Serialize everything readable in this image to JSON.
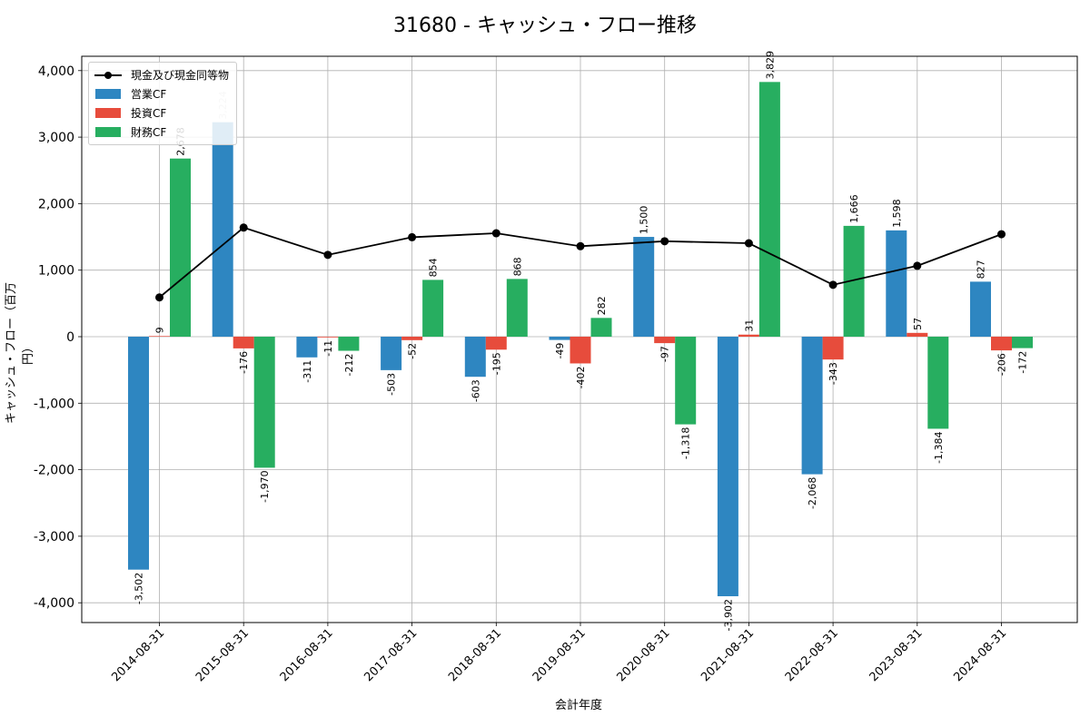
{
  "chart_data": {
    "type": "bar",
    "title": "31680 - キャッシュ・フロー推移",
    "xlabel": "会計年度",
    "ylabel": "キャッシュ・フロー（百万円）",
    "ylim": [
      -4300,
      4250
    ],
    "yticks": [
      -4000,
      -3000,
      -2000,
      -1000,
      0,
      1000,
      2000,
      3000,
      4000
    ],
    "ytick_labels": [
      "-4,000",
      "-3,000",
      "-2,000",
      "-1,000",
      "0",
      "1,000",
      "2,000",
      "3,000",
      "4,000"
    ],
    "grid": true,
    "legend_position": "top-left",
    "categories": [
      "2014-08-31",
      "2015-08-31",
      "2016-08-31",
      "2017-08-31",
      "2018-08-31",
      "2019-08-31",
      "2020-08-31",
      "2021-08-31",
      "2022-08-31",
      "2023-08-31",
      "2024-08-31"
    ],
    "series": [
      {
        "name": "営業CF",
        "kind": "bar",
        "color": "#2e86c1",
        "values": [
          -3502,
          3224,
          -311,
          -503,
          -603,
          -49,
          1500,
          -3902,
          -2068,
          1598,
          827
        ],
        "labels": [
          "-3,502",
          "3,224",
          "-311",
          "-503",
          "-603",
          "-49",
          "1,500",
          "-3,902",
          "-2,068",
          "1,598",
          "827"
        ]
      },
      {
        "name": "投資CF",
        "kind": "bar",
        "color": "#e74c3c",
        "values": [
          9,
          -176,
          -11,
          -52,
          -195,
          -402,
          -97,
          31,
          -343,
          57,
          -206
        ],
        "labels": [
          "9",
          "-176",
          "-11",
          "-52",
          "-195",
          "-402",
          "-97",
          "31",
          "-343",
          "57",
          "-206"
        ]
      },
      {
        "name": "財務CF",
        "kind": "bar",
        "color": "#27ae60",
        "values": [
          2678,
          -1970,
          -212,
          854,
          868,
          282,
          -1318,
          3829,
          1666,
          -1384,
          -172
        ],
        "labels": [
          "2,678",
          "-1,970",
          "-212",
          "854",
          "868",
          "282",
          "-1,318",
          "3,829",
          "1,666",
          "-1,384",
          "-172"
        ]
      },
      {
        "name": "現金及び現金同等物",
        "kind": "line",
        "color": "#000000",
        "values": [
          590,
          1640,
          1230,
          1495,
          1555,
          1360,
          1435,
          1405,
          780,
          1065,
          1540
        ]
      }
    ]
  }
}
